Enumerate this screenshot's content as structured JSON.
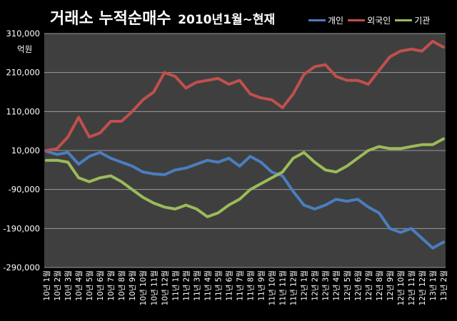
{
  "chart_data": {
    "type": "line",
    "title": "거래소  누적순매수",
    "subtitle": "2010년1월~현재",
    "ylabel_unit": "억원",
    "ylim": [
      -290000,
      310000
    ],
    "y_ticks": [
      310000,
      210000,
      110000,
      10000,
      -90000,
      -190000,
      -290000
    ],
    "y_tick_labels": [
      "310,000",
      "210,000",
      "110,000",
      "10,000",
      "-90,000",
      "-190,000",
      "-290,000"
    ],
    "grid": true,
    "legend_position": "top-right",
    "categories": [
      "10년 1월",
      "10년 2월",
      "10년 3월",
      "10년 4월",
      "10년 5월",
      "10년 6월",
      "10년 7월",
      "10년 8월",
      "10년 9월",
      "10년 10월",
      "10년 11월",
      "10년 12월",
      "11년 1월",
      "11년 2월",
      "11년 3월",
      "11년 4월",
      "11년 5월",
      "11년 6월",
      "11년 7월",
      "11년 8월",
      "11년 9월",
      "11년 10월",
      "11년 11월",
      "11년 12월",
      "12년 1월",
      "12년 2월",
      "12년 3월",
      "12년 4월",
      "12년 5월",
      "12년 6월",
      "12년 7월",
      "12년 8월",
      "12년 9월",
      "12년 10월",
      "12년 11월",
      "12년 12월",
      "13년 1월",
      "13년 2월"
    ],
    "series": [
      {
        "name": "개인",
        "color": "#4a7ebf",
        "values": [
          8000,
          0,
          5000,
          -25000,
          -5000,
          5000,
          -10000,
          -20000,
          -30000,
          -45000,
          -50000,
          -52000,
          -40000,
          -35000,
          -25000,
          -15000,
          -20000,
          -10000,
          -30000,
          -5000,
          -20000,
          -45000,
          -55000,
          -95000,
          -130000,
          -140000,
          -130000,
          -115000,
          -120000,
          -115000,
          -135000,
          -150000,
          -190000,
          -200000,
          -190000,
          -215000,
          -240000,
          -225000
        ]
      },
      {
        "name": "외국인",
        "color": "#c0504d",
        "values": [
          10000,
          15000,
          45000,
          95000,
          45000,
          55000,
          85000,
          85000,
          110000,
          140000,
          160000,
          210000,
          200000,
          170000,
          185000,
          190000,
          195000,
          180000,
          190000,
          155000,
          145000,
          140000,
          120000,
          155000,
          205000,
          225000,
          230000,
          200000,
          190000,
          190000,
          180000,
          215000,
          250000,
          265000,
          270000,
          265000,
          290000,
          275000
        ]
      },
      {
        "name": "기관",
        "color": "#9bbb59",
        "values": [
          -15000,
          -15000,
          -20000,
          -60000,
          -70000,
          -60000,
          -55000,
          -70000,
          -90000,
          -110000,
          -125000,
          -135000,
          -140000,
          -130000,
          -140000,
          -160000,
          -150000,
          -130000,
          -115000,
          -90000,
          -75000,
          -60000,
          -45000,
          -10000,
          5000,
          -20000,
          -40000,
          -45000,
          -30000,
          -10000,
          10000,
          20000,
          15000,
          15000,
          20000,
          25000,
          25000,
          40000
        ]
      }
    ]
  }
}
